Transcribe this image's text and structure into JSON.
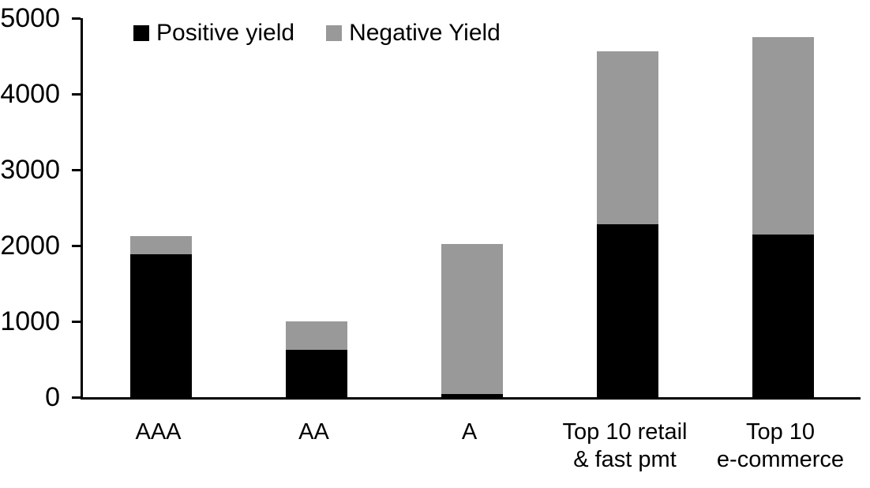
{
  "chart_data": {
    "type": "bar",
    "stacked": true,
    "title": "",
    "xlabel": "",
    "ylabel": "",
    "categories": [
      "AAA",
      "AA",
      "A",
      "Top 10 retail & fast pmt",
      "Top 10 e-commerce"
    ],
    "category_label_lines": [
      [
        "AAA"
      ],
      [
        "AA"
      ],
      [
        "A"
      ],
      [
        "Top 10 retail",
        "& fast pmt"
      ],
      [
        "Top 10",
        "e-commerce"
      ]
    ],
    "series": [
      {
        "name": "Positive yield",
        "color": "#000000",
        "values": [
          1890,
          625,
          40,
          2280,
          2150
        ]
      },
      {
        "name": "Negative Yield",
        "color": "#999999",
        "values": [
          230,
          375,
          1980,
          2280,
          2600
        ]
      }
    ],
    "ylim": [
      0,
      5000
    ],
    "yticks": [
      0,
      1000,
      2000,
      3000,
      4000,
      5000
    ],
    "grid": false,
    "legend_position": "top-inside",
    "axis_color": "#000000",
    "background_color": "#ffffff"
  }
}
